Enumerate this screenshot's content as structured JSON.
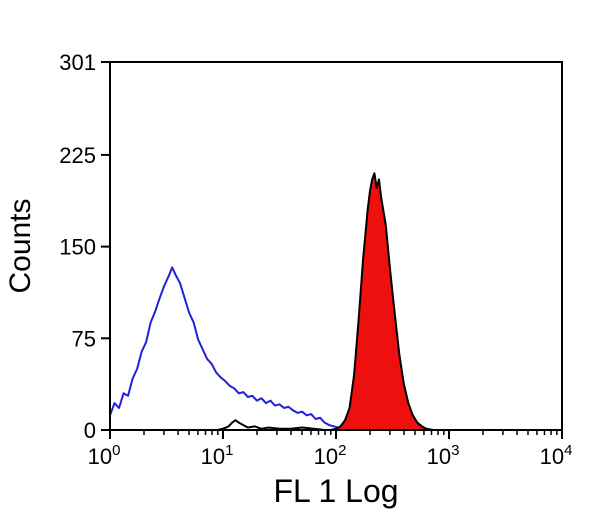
{
  "figure": {
    "background": "#ffffff",
    "frame_color": "#000000"
  },
  "chart_data": {
    "type": "area",
    "subtype": "flow-cytometry-histogram-overlay",
    "title": "",
    "xlabel": "FL 1 Log",
    "ylabel": "Counts",
    "x_scale": "log10",
    "x_exponent_range": [
      0,
      4
    ],
    "x_major_tick_exponents": [
      0,
      1,
      2,
      3,
      4
    ],
    "x_tick_base": "10",
    "ylim": [
      0,
      301
    ],
    "y_ticks": [
      0,
      75,
      150,
      225,
      301
    ],
    "grid": false,
    "legend": "none",
    "series": [
      {
        "name": "blue-open-histogram",
        "style": "open",
        "stroke": "#2121dd",
        "fill": "none",
        "points_logx_count": [
          [
            0.0,
            12
          ],
          [
            0.04,
            22
          ],
          [
            0.08,
            18
          ],
          [
            0.12,
            30
          ],
          [
            0.16,
            28
          ],
          [
            0.2,
            42
          ],
          [
            0.24,
            50
          ],
          [
            0.28,
            64
          ],
          [
            0.32,
            72
          ],
          [
            0.36,
            88
          ],
          [
            0.4,
            97
          ],
          [
            0.44,
            108
          ],
          [
            0.48,
            118
          ],
          [
            0.52,
            126
          ],
          [
            0.55,
            133
          ],
          [
            0.58,
            127
          ],
          [
            0.62,
            120
          ],
          [
            0.66,
            108
          ],
          [
            0.7,
            96
          ],
          [
            0.74,
            88
          ],
          [
            0.78,
            74
          ],
          [
            0.82,
            66
          ],
          [
            0.86,
            58
          ],
          [
            0.9,
            54
          ],
          [
            0.94,
            47
          ],
          [
            0.98,
            43
          ],
          [
            1.02,
            40
          ],
          [
            1.06,
            36
          ],
          [
            1.1,
            34
          ],
          [
            1.14,
            30
          ],
          [
            1.18,
            31
          ],
          [
            1.22,
            27
          ],
          [
            1.26,
            28
          ],
          [
            1.3,
            24
          ],
          [
            1.34,
            26
          ],
          [
            1.38,
            22
          ],
          [
            1.42,
            24
          ],
          [
            1.46,
            20
          ],
          [
            1.5,
            21
          ],
          [
            1.54,
            18
          ],
          [
            1.58,
            19
          ],
          [
            1.62,
            16
          ],
          [
            1.66,
            14
          ],
          [
            1.7,
            15
          ],
          [
            1.74,
            12
          ],
          [
            1.78,
            13
          ],
          [
            1.82,
            9
          ],
          [
            1.86,
            10
          ],
          [
            1.9,
            6
          ],
          [
            1.94,
            4
          ],
          [
            1.98,
            3
          ],
          [
            2.02,
            2
          ],
          [
            2.06,
            1
          ],
          [
            2.1,
            1
          ],
          [
            2.15,
            0
          ],
          [
            2.2,
            0
          ]
        ]
      },
      {
        "name": "red-filled-histogram",
        "style": "filled",
        "stroke": "#000000",
        "fill": "#ee0f0f",
        "points_logx_count": [
          [
            1.95,
            0
          ],
          [
            2.0,
            1
          ],
          [
            2.04,
            3
          ],
          [
            2.08,
            8
          ],
          [
            2.12,
            18
          ],
          [
            2.16,
            45
          ],
          [
            2.2,
            90
          ],
          [
            2.24,
            140
          ],
          [
            2.28,
            180
          ],
          [
            2.3,
            195
          ],
          [
            2.32,
            205
          ],
          [
            2.34,
            210
          ],
          [
            2.36,
            198
          ],
          [
            2.38,
            205
          ],
          [
            2.4,
            190
          ],
          [
            2.44,
            168
          ],
          [
            2.48,
            130
          ],
          [
            2.52,
            95
          ],
          [
            2.56,
            62
          ],
          [
            2.6,
            38
          ],
          [
            2.64,
            22
          ],
          [
            2.68,
            12
          ],
          [
            2.72,
            6
          ],
          [
            2.76,
            3
          ],
          [
            2.8,
            1
          ],
          [
            2.86,
            0
          ]
        ]
      },
      {
        "name": "black-baseline-trace",
        "style": "open",
        "stroke": "#000000",
        "fill": "none",
        "points_logx_count": [
          [
            0.95,
            0
          ],
          [
            1.0,
            1
          ],
          [
            1.05,
            3
          ],
          [
            1.08,
            6
          ],
          [
            1.11,
            8
          ],
          [
            1.14,
            6
          ],
          [
            1.18,
            4
          ],
          [
            1.22,
            2
          ],
          [
            1.28,
            3
          ],
          [
            1.34,
            1
          ],
          [
            1.4,
            2
          ],
          [
            1.5,
            1
          ],
          [
            1.6,
            1
          ],
          [
            1.7,
            2
          ],
          [
            1.8,
            1
          ],
          [
            1.9,
            0
          ]
        ]
      }
    ]
  }
}
